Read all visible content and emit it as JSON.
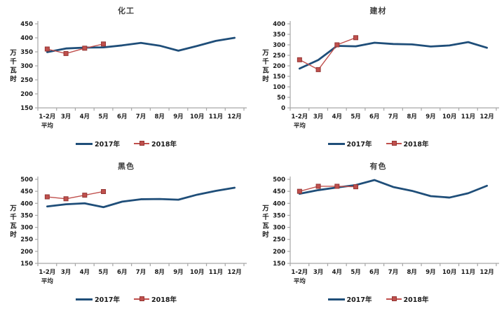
{
  "colors": {
    "background": "#FFFFFF",
    "series_2017": "#1F4E79",
    "series_2018": "#C0504D",
    "marker_border": "#943634",
    "axis_line": "#A6A6A6",
    "tick_label": "#1A1A1A",
    "title_text": "#3F3F3F"
  },
  "legend": {
    "position": "bottom",
    "items": [
      {
        "label": "2017年"
      },
      {
        "label": "2018年"
      }
    ]
  },
  "chart_data": [
    {
      "type": "line",
      "title": "化工",
      "ylabel": "万千瓦时",
      "ylim": [
        150,
        450
      ],
      "ystep": 50,
      "grid": false,
      "legend_position": "bottom",
      "categories": [
        "1-2月",
        "3月",
        "4月",
        "5月",
        "6月",
        "7月",
        "8月",
        "9月",
        "10月",
        "11月",
        "12月"
      ],
      "first_category_line2": "平均",
      "series": [
        {
          "name": "2017年",
          "values": [
            349,
            362,
            365,
            366,
            373,
            382,
            372,
            354,
            371,
            389,
            400
          ]
        },
        {
          "name": "2018年",
          "values": [
            360,
            344,
            363,
            378
          ],
          "marker": "square"
        }
      ]
    },
    {
      "type": "line",
      "title": "建材",
      "ylabel": "万千瓦时",
      "ylim": [
        0,
        400
      ],
      "ystep": 50,
      "grid": false,
      "legend_position": "bottom",
      "categories": [
        "1-2月",
        "3月",
        "4月",
        "5月",
        "6月",
        "7月",
        "8月",
        "9月",
        "10月",
        "11月",
        "12月"
      ],
      "first_category_line2": "平均",
      "series": [
        {
          "name": "2017年",
          "values": [
            187,
            228,
            295,
            293,
            310,
            304,
            302,
            292,
            297,
            313,
            286
          ]
        },
        {
          "name": "2018年",
          "values": [
            229,
            182,
            300,
            334
          ],
          "marker": "square"
        }
      ]
    },
    {
      "type": "line",
      "title": "黑色",
      "ylabel": "万千瓦时",
      "ylim": [
        150,
        500
      ],
      "ystep": 50,
      "grid": false,
      "legend_position": "bottom",
      "categories": [
        "1-2月",
        "3月",
        "4月",
        "5月",
        "6月",
        "7月",
        "8月",
        "9月",
        "10月",
        "11月",
        "12月"
      ],
      "first_category_line2": "平均",
      "series": [
        {
          "name": "2017年",
          "values": [
            387,
            396,
            400,
            384,
            407,
            417,
            418,
            415,
            436,
            452,
            465
          ]
        },
        {
          "name": "2018年",
          "values": [
            427,
            419,
            434,
            449
          ],
          "marker": "square"
        }
      ]
    },
    {
      "type": "line",
      "title": "有色",
      "ylabel": "万千瓦时",
      "ylim": [
        150,
        500
      ],
      "ystep": 50,
      "grid": false,
      "legend_position": "bottom",
      "categories": [
        "1-2月",
        "3月",
        "4月",
        "5月",
        "6月",
        "7月",
        "8月",
        "9月",
        "10月",
        "11月",
        "12月"
      ],
      "first_category_line2": "平均",
      "series": [
        {
          "name": "2017年",
          "values": [
            440,
            455,
            466,
            476,
            497,
            468,
            452,
            430,
            424,
            442,
            473
          ]
        },
        {
          "name": "2018年",
          "values": [
            450,
            471,
            471,
            469
          ],
          "marker": "square"
        }
      ]
    }
  ]
}
